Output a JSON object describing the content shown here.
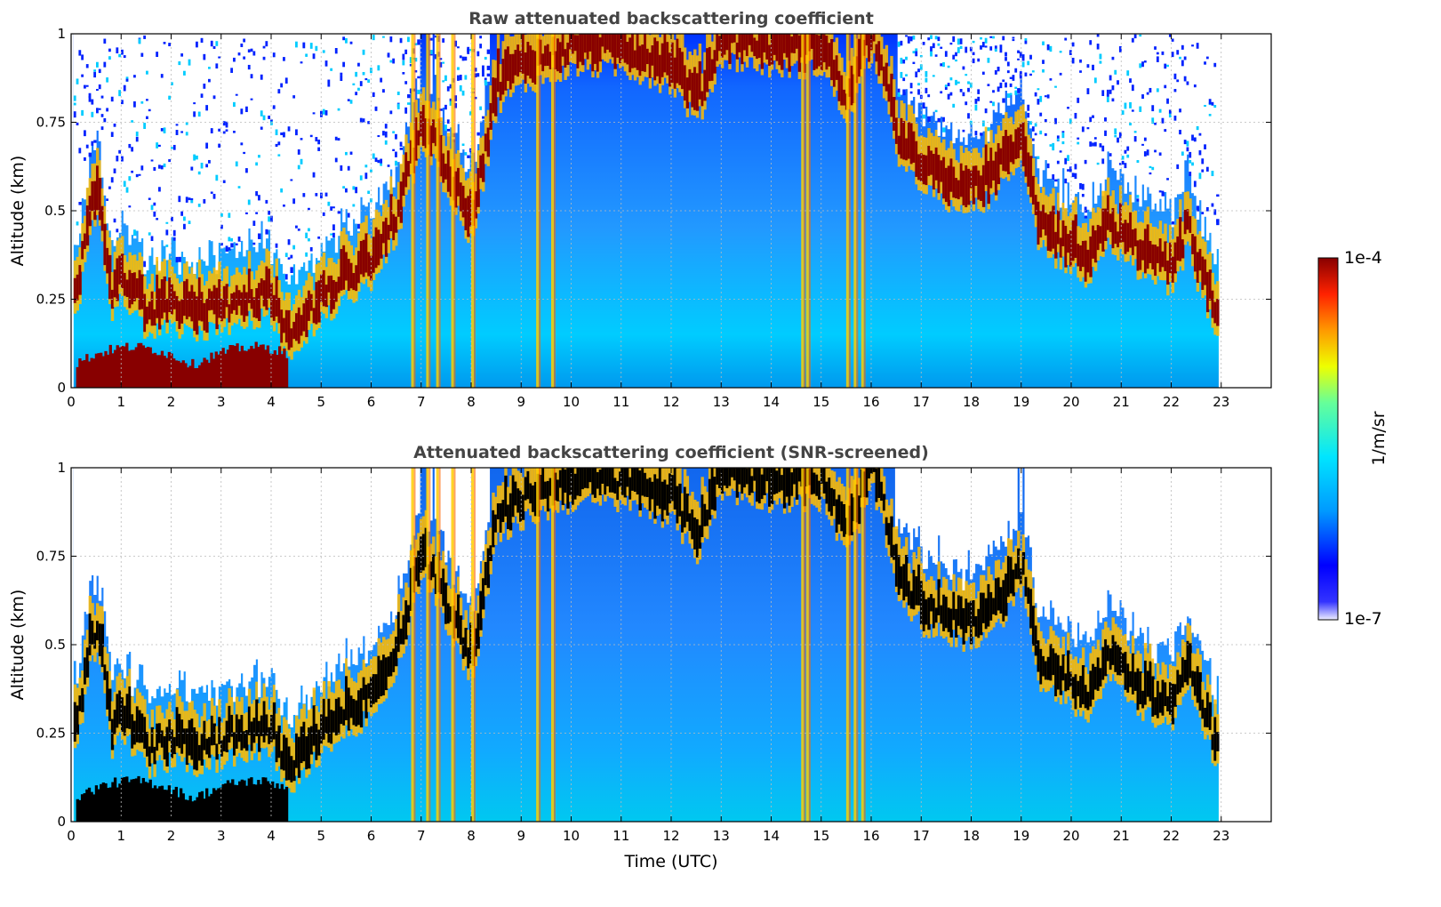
{
  "chart_data": [
    {
      "type": "heatmap",
      "title": "Raw attenuated backscattering coefficient",
      "xlabel": "",
      "ylabel": "Altitude (km)",
      "xlim": [
        0,
        24
      ],
      "ylim": [
        0,
        1
      ],
      "x_ticks": [
        "0",
        "1",
        "2",
        "3",
        "4",
        "5",
        "6",
        "7",
        "8",
        "9",
        "10",
        "11",
        "12",
        "13",
        "14",
        "15",
        "16",
        "17",
        "18",
        "19",
        "20",
        "21",
        "22",
        "23"
      ],
      "y_ticks": [
        "0",
        "0.25",
        "0.5",
        "0.75",
        "1"
      ],
      "grid": true,
      "data_extent_hours": [
        0.05,
        22.95
      ],
      "boundary_layer_top_km": {
        "time": [
          0.1,
          0.3,
          0.5,
          0.8,
          1.0,
          1.5,
          2.0,
          2.5,
          3.0,
          3.5,
          4.0,
          4.3,
          4.6,
          5.0,
          5.5,
          6.0,
          6.5,
          7.0,
          7.5,
          8.0,
          8.5,
          9.0,
          10.0,
          11.0,
          12.0,
          12.5,
          13.0,
          14.0,
          15.0,
          15.5,
          16.0,
          16.5,
          17.0,
          18.0,
          18.5,
          19.0,
          19.3,
          19.8,
          20.3,
          20.7,
          21.0,
          21.5,
          22.0,
          22.3,
          22.6,
          22.95
        ],
        "altitude": [
          0.25,
          0.45,
          0.55,
          0.25,
          0.3,
          0.2,
          0.22,
          0.2,
          0.22,
          0.24,
          0.25,
          0.12,
          0.18,
          0.25,
          0.3,
          0.35,
          0.48,
          0.75,
          0.6,
          0.45,
          0.85,
          0.9,
          0.95,
          0.95,
          0.9,
          0.8,
          0.98,
          0.95,
          0.95,
          0.8,
          1.0,
          0.7,
          0.6,
          0.55,
          0.6,
          0.7,
          0.45,
          0.4,
          0.35,
          0.45,
          0.42,
          0.35,
          0.32,
          0.45,
          0.3,
          0.2
        ]
      }
    },
    {
      "type": "heatmap",
      "title": "Attenuated backscattering coefficient (SNR-screened)",
      "xlabel": "Time (UTC)",
      "ylabel": "Altitude (km)",
      "xlim": [
        0,
        24
      ],
      "ylim": [
        0,
        1
      ],
      "x_ticks": [
        "0",
        "1",
        "2",
        "3",
        "4",
        "5",
        "6",
        "7",
        "8",
        "9",
        "10",
        "11",
        "12",
        "13",
        "14",
        "15",
        "16",
        "17",
        "18",
        "19",
        "20",
        "21",
        "22",
        "23"
      ],
      "y_ticks": [
        "0",
        "0.25",
        "0.5",
        "0.75",
        "1"
      ],
      "grid": true
    }
  ],
  "colorbar": {
    "min_label": "1e-7",
    "max_label": "1e-4",
    "label": "1/m/sr",
    "colormap": "jet",
    "colors": [
      "#eeeeff",
      "#0000ff",
      "#0066ff",
      "#00ccff",
      "#33ffcc",
      "#ccff33",
      "#ffcc00",
      "#ff3300",
      "#880000"
    ]
  }
}
